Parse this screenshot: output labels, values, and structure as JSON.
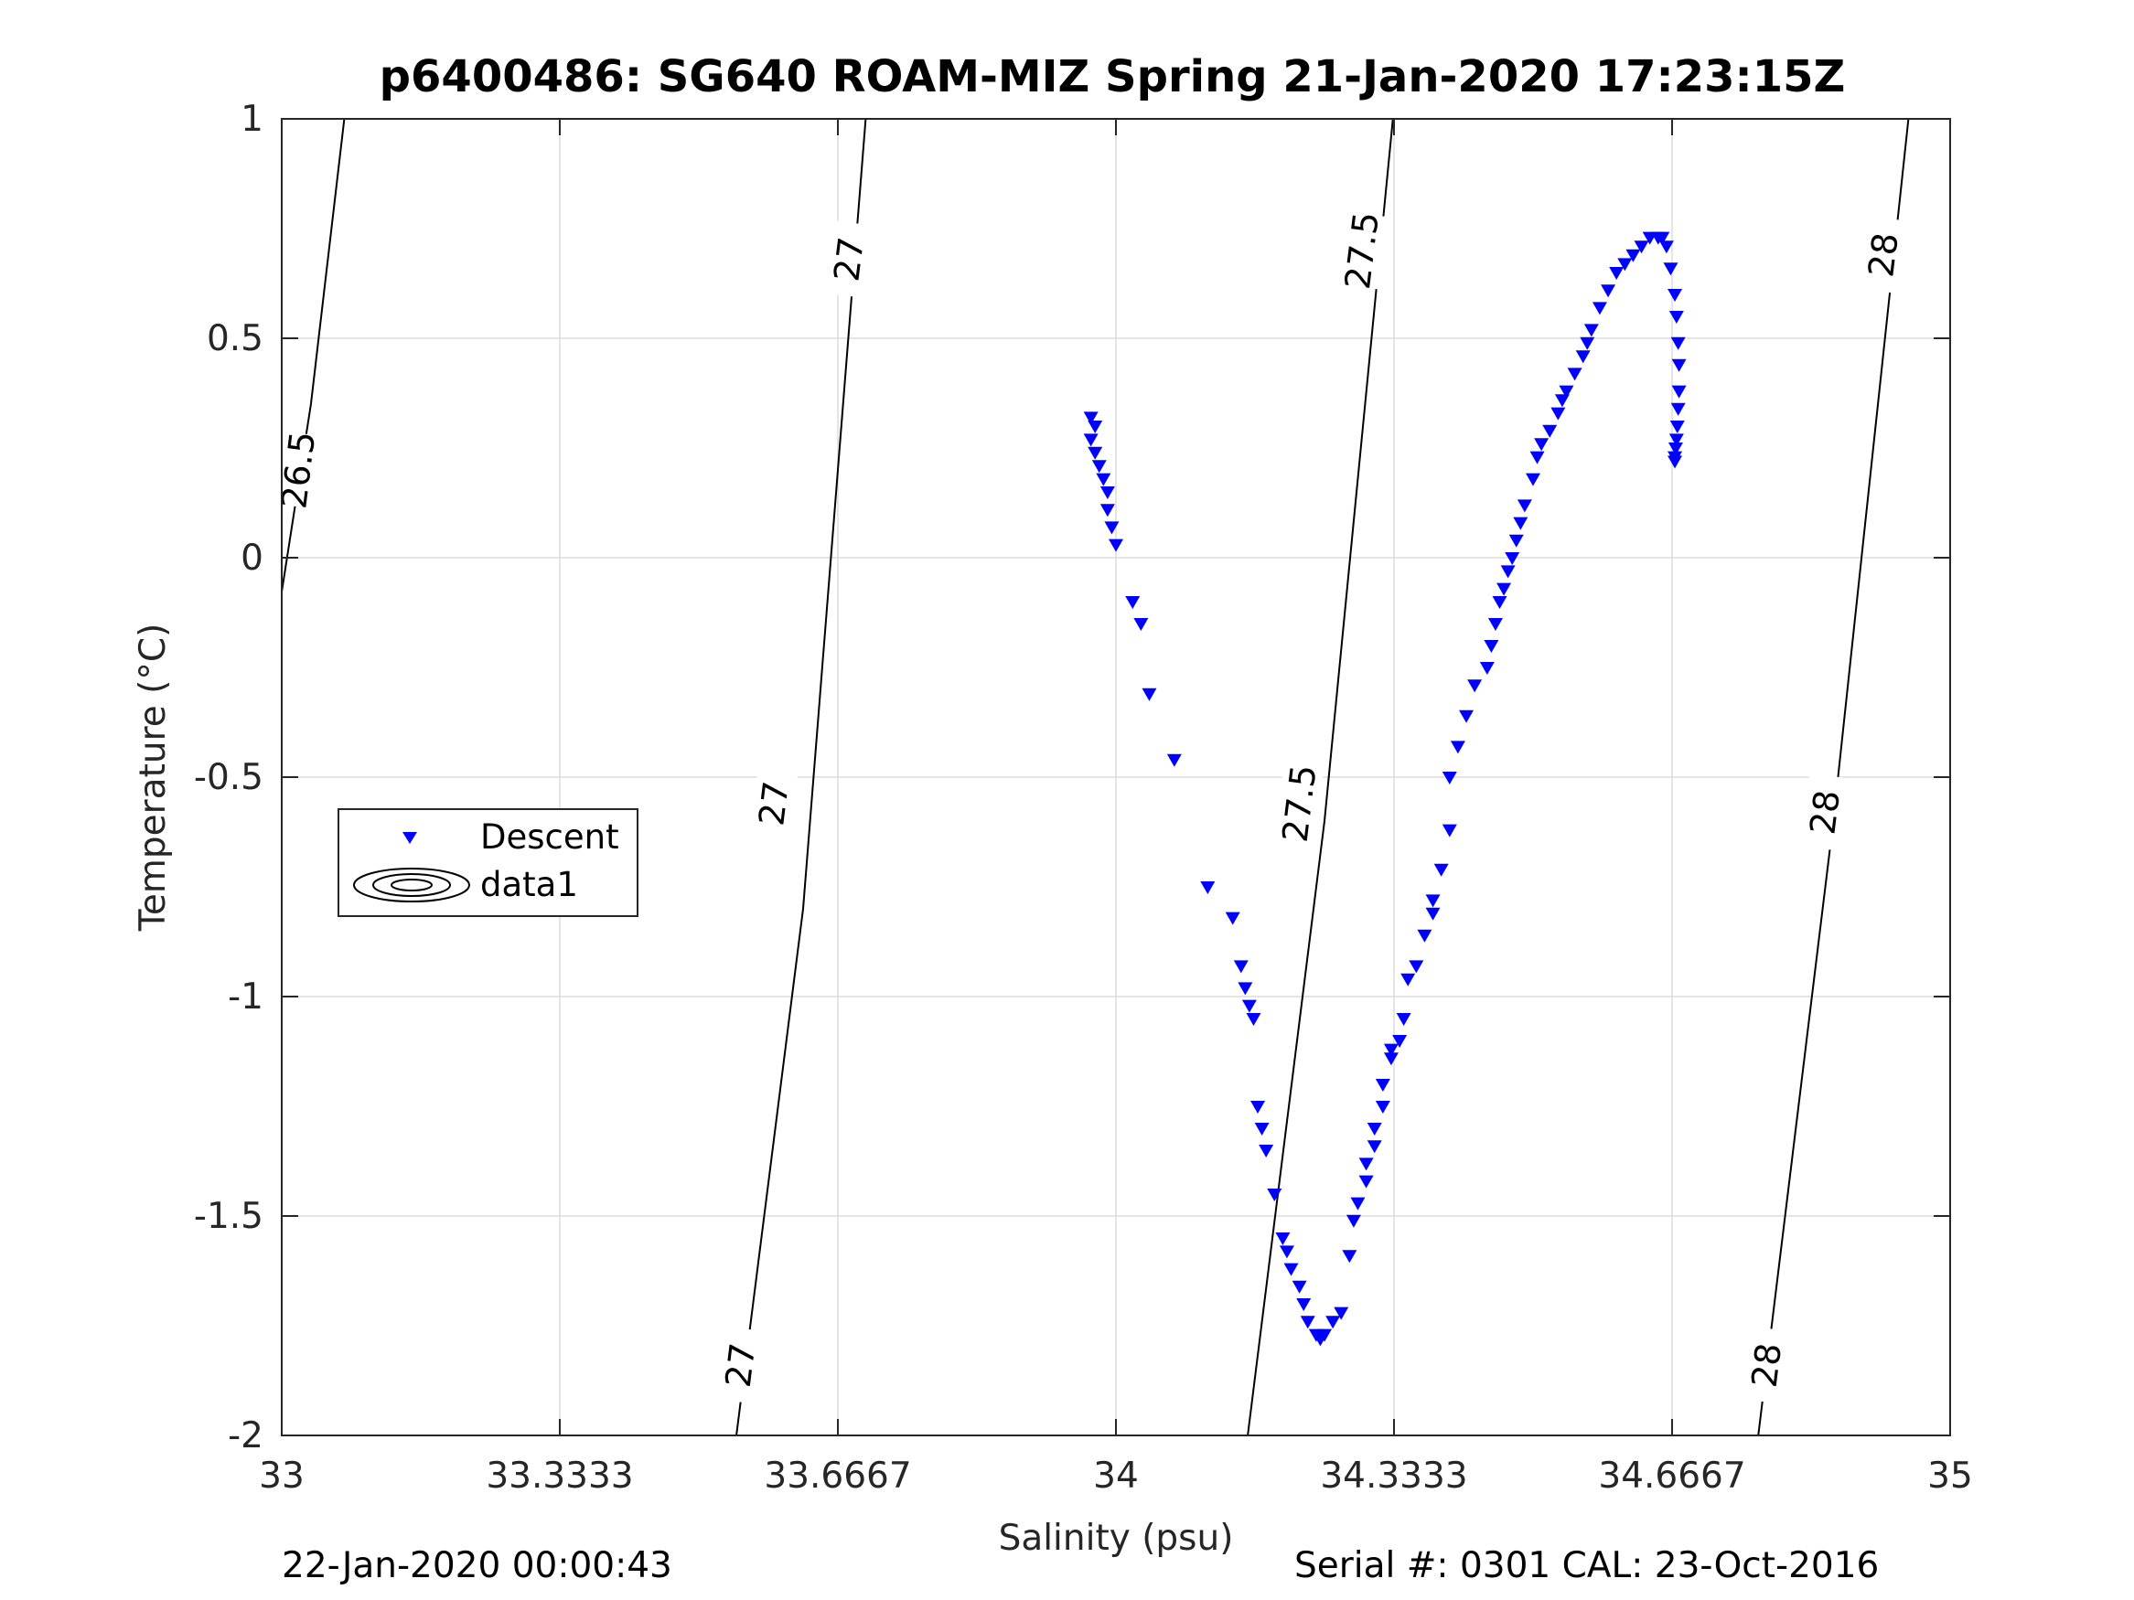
{
  "chart_data": {
    "type": "scatter",
    "title": "p6400486: SG640 ROAM-MIZ Spring 21-Jan-2020 17:23:15Z",
    "xlabel": "Salinity (psu)",
    "ylabel": "Temperature (°C)",
    "xlim": [
      33,
      35
    ],
    "ylim": [
      -2,
      1
    ],
    "xticks": [
      33,
      33.3333,
      33.6667,
      34,
      34.3333,
      34.6667,
      35
    ],
    "xtick_labels": [
      "33",
      "33.3333",
      "33.6667",
      "34",
      "34.3333",
      "34.6667",
      "35"
    ],
    "yticks": [
      -2,
      -1.5,
      -1,
      -0.5,
      0,
      0.5,
      1
    ],
    "ytick_labels": [
      "-2",
      "-1.5",
      "-1",
      "-0.5",
      "0",
      "0.5",
      "1"
    ],
    "grid": true,
    "legend_position": "middle-left",
    "legend": [
      "Descent",
      "data1"
    ],
    "series": [
      {
        "name": "Descent",
        "marker": "downward-triangle",
        "color": "#0000ff",
        "x": [
          33.97,
          33.975,
          33.97,
          33.975,
          33.98,
          33.985,
          33.99,
          33.99,
          33.995,
          34.0,
          34.02,
          34.03,
          34.04,
          34.07,
          34.11,
          34.14,
          34.15,
          34.155,
          34.16,
          34.165,
          34.17,
          34.175,
          34.18,
          34.19,
          34.2,
          34.205,
          34.21,
          34.22,
          34.225,
          34.23,
          34.24,
          34.245,
          34.25,
          34.26,
          34.27,
          34.28,
          34.285,
          34.29,
          34.3,
          34.3,
          34.31,
          34.31,
          34.32,
          34.32,
          34.33,
          34.33,
          34.34,
          34.345,
          34.35,
          34.36,
          34.37,
          34.38,
          34.38,
          34.39,
          34.4,
          34.4,
          34.41,
          34.42,
          34.43,
          34.445,
          34.45,
          34.455,
          34.46,
          34.465,
          34.47,
          34.475,
          34.48,
          34.485,
          34.49,
          34.5,
          34.505,
          34.51,
          34.52,
          34.53,
          34.535,
          34.54,
          34.55,
          34.56,
          34.565,
          34.57,
          34.58,
          34.59,
          34.6,
          34.61,
          34.62,
          34.63,
          34.64,
          34.65,
          34.655,
          34.66,
          34.665,
          34.67,
          34.672,
          34.674,
          34.675,
          34.675,
          34.674,
          34.673,
          34.672,
          34.671,
          34.67,
          34.67
        ],
        "y": [
          0.32,
          0.3,
          0.27,
          0.24,
          0.21,
          0.18,
          0.15,
          0.11,
          0.07,
          0.03,
          -0.1,
          -0.15,
          -0.31,
          -0.46,
          -0.75,
          -0.82,
          -0.93,
          -0.98,
          -1.02,
          -1.05,
          -1.25,
          -1.3,
          -1.35,
          -1.45,
          -1.55,
          -1.58,
          -1.62,
          -1.66,
          -1.7,
          -1.74,
          -1.77,
          -1.78,
          -1.77,
          -1.74,
          -1.72,
          -1.59,
          -1.51,
          -1.47,
          -1.42,
          -1.38,
          -1.34,
          -1.3,
          -1.25,
          -1.2,
          -1.14,
          -1.12,
          -1.1,
          -1.05,
          -0.96,
          -0.93,
          -0.86,
          -0.81,
          -0.78,
          -0.71,
          -0.62,
          -0.5,
          -0.43,
          -0.36,
          -0.29,
          -0.25,
          -0.2,
          -0.15,
          -0.1,
          -0.07,
          -0.03,
          0.0,
          0.04,
          0.08,
          0.12,
          0.18,
          0.23,
          0.26,
          0.29,
          0.33,
          0.36,
          0.38,
          0.42,
          0.46,
          0.49,
          0.52,
          0.57,
          0.61,
          0.65,
          0.67,
          0.69,
          0.71,
          0.73,
          0.73,
          0.73,
          0.71,
          0.66,
          0.6,
          0.55,
          0.49,
          0.44,
          0.38,
          0.34,
          0.3,
          0.27,
          0.25,
          0.23,
          0.22
        ]
      }
    ],
    "contours": [
      {
        "label": "26.5",
        "x": [
          32.99,
          33.035,
          33.075
        ],
        "y": [
          -0.2,
          0.35,
          1.0
        ]
      },
      {
        "label": "27",
        "x": [
          33.545,
          33.625,
          33.7
        ],
        "y": [
          -2.0,
          -0.8,
          1.0
        ]
      },
      {
        "label": "27.5",
        "x": [
          34.158,
          34.25,
          34.332
        ],
        "y": [
          -2.0,
          -0.6,
          1.0
        ]
      },
      {
        "label": "28",
        "x": [
          34.77,
          34.86,
          34.95
        ],
        "y": [
          -2.0,
          -0.6,
          1.0
        ]
      }
    ],
    "contour_labels": [
      {
        "text": "26.5",
        "x": 33.02,
        "y": 0.2
      },
      {
        "text": "27",
        "x": 33.68,
        "y": 0.68
      },
      {
        "text": "27",
        "x": 33.59,
        "y": -0.56
      },
      {
        "text": "27",
        "x": 33.55,
        "y": -1.84
      },
      {
        "text": "27.5",
        "x": 34.295,
        "y": 0.7
      },
      {
        "text": "27.5",
        "x": 34.22,
        "y": -0.56
      },
      {
        "text": "28",
        "x": 34.92,
        "y": 0.69
      },
      {
        "text": "28",
        "x": 34.85,
        "y": -0.58
      },
      {
        "text": "28",
        "x": 34.78,
        "y": -1.84
      }
    ]
  },
  "footer": {
    "timestamp": "22-Jan-2020 00:00:43",
    "serial": "Serial #: 0301  CAL: 23-Oct-2016"
  }
}
